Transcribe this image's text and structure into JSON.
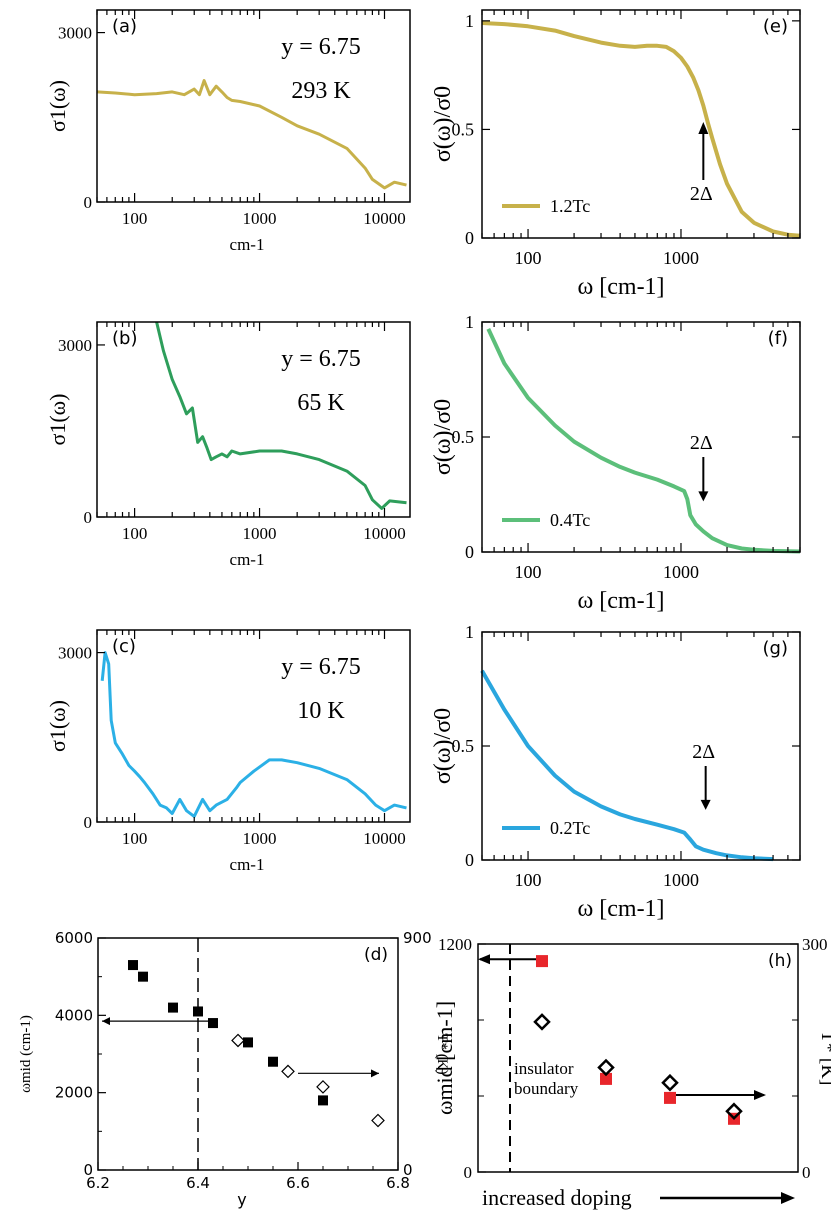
{
  "chart_data": [
    {
      "id": "a",
      "type": "line",
      "panel_label": "(a)",
      "annotations": [
        "y = 6.75",
        "293 K"
      ],
      "ylabel": "σ1(ω)",
      "xlabel": "cm-1",
      "xscale": "log",
      "xlim": [
        50,
        16000
      ],
      "ylim": [
        0,
        3400
      ],
      "xticks": [
        100,
        1000,
        10000
      ],
      "xtick_labels": [
        "100",
        "1000",
        "10000"
      ],
      "yticks": [
        0,
        3000
      ],
      "ytick_labels": [
        "0",
        "3000"
      ],
      "series": [
        {
          "color": "#c7b14a",
          "x": [
            50,
            70,
            100,
            150,
            200,
            250,
            300,
            330,
            360,
            400,
            450,
            500,
            550,
            600,
            700,
            1000,
            1500,
            2000,
            3000,
            5000,
            7000,
            8000,
            10000,
            12000,
            15000
          ],
          "y": [
            1950,
            1930,
            1900,
            1920,
            1950,
            1900,
            2000,
            1900,
            2150,
            1900,
            2050,
            1950,
            1850,
            1800,
            1780,
            1700,
            1500,
            1350,
            1200,
            950,
            600,
            400,
            250,
            350,
            300
          ]
        }
      ]
    },
    {
      "id": "b",
      "type": "line",
      "panel_label": "(b)",
      "annotations": [
        "y = 6.75",
        "65 K"
      ],
      "ylabel": "σ1(ω)",
      "xlabel": "cm-1",
      "xscale": "log",
      "xlim": [
        50,
        16000
      ],
      "ylim": [
        0,
        3400
      ],
      "xticks": [
        100,
        1000,
        10000
      ],
      "xtick_labels": [
        "100",
        "1000",
        "10000"
      ],
      "yticks": [
        0,
        3000
      ],
      "ytick_labels": [
        "0",
        "3000"
      ],
      "series": [
        {
          "color": "#2e9e5b",
          "x": [
            150,
            170,
            200,
            230,
            260,
            290,
            320,
            350,
            380,
            410,
            450,
            500,
            550,
            600,
            700,
            1000,
            1500,
            2000,
            3000,
            5000,
            7000,
            8000,
            9500,
            11000,
            15000
          ],
          "y": [
            3400,
            2900,
            2400,
            2100,
            1800,
            1900,
            1300,
            1400,
            1200,
            1000,
            1050,
            1100,
            1050,
            1150,
            1100,
            1150,
            1150,
            1100,
            1000,
            800,
            550,
            300,
            150,
            280,
            250
          ]
        }
      ]
    },
    {
      "id": "c",
      "type": "line",
      "panel_label": "(c)",
      "annotations": [
        "y = 6.75",
        "10 K"
      ],
      "ylabel": "σ1(ω)",
      "xlabel": "cm-1",
      "xscale": "log",
      "xlim": [
        50,
        16000
      ],
      "ylim": [
        0,
        3400
      ],
      "xticks": [
        100,
        1000,
        10000
      ],
      "xtick_labels": [
        "100",
        "1000",
        "10000"
      ],
      "yticks": [
        0,
        3000
      ],
      "ytick_labels": [
        "0",
        "3000"
      ],
      "series": [
        {
          "color": "#2bb0e6",
          "x": [
            55,
            58,
            62,
            65,
            70,
            80,
            90,
            100,
            110,
            120,
            140,
            160,
            180,
            200,
            230,
            260,
            300,
            350,
            400,
            450,
            550,
            650,
            700,
            900,
            1200,
            1500,
            2000,
            3000,
            5000,
            7000,
            8500,
            10000,
            12000,
            15000
          ],
          "y": [
            2500,
            3000,
            2800,
            1800,
            1400,
            1200,
            1000,
            900,
            800,
            700,
            500,
            300,
            250,
            150,
            400,
            200,
            100,
            400,
            200,
            300,
            400,
            600,
            700,
            900,
            1100,
            1100,
            1050,
            950,
            750,
            500,
            300,
            200,
            300,
            250
          ]
        }
      ]
    },
    {
      "id": "e",
      "type": "line",
      "panel_label": "(e)",
      "ylabel": "σ(ω)/σ0",
      "xlabel": "ω [cm-1]",
      "xscale": "log",
      "xlim": [
        50,
        6000
      ],
      "ylim": [
        0,
        1.05
      ],
      "xticks": [
        100,
        1000
      ],
      "xtick_labels": [
        "100",
        "1000"
      ],
      "yticks": [
        0,
        0.5,
        1
      ],
      "ytick_labels": [
        "0",
        "0.5",
        "1"
      ],
      "legend": "1.2Tc",
      "legend_position": "bottom-left",
      "arrow": {
        "text": "2Δ",
        "x": 1400,
        "direction": "up"
      },
      "series": [
        {
          "name": "1.2Tc",
          "color": "#c7b14a",
          "x": [
            50,
            70,
            100,
            150,
            200,
            300,
            400,
            500,
            600,
            700,
            800,
            900,
            1000,
            1100,
            1200,
            1300,
            1400,
            1500,
            1600,
            1800,
            2000,
            2500,
            3000,
            4000,
            5000,
            6000
          ],
          "y": [
            0.99,
            0.985,
            0.975,
            0.955,
            0.93,
            0.9,
            0.885,
            0.88,
            0.885,
            0.885,
            0.88,
            0.86,
            0.83,
            0.79,
            0.74,
            0.68,
            0.61,
            0.53,
            0.46,
            0.34,
            0.25,
            0.12,
            0.07,
            0.03,
            0.015,
            0.01
          ]
        }
      ]
    },
    {
      "id": "f",
      "type": "line",
      "panel_label": "(f)",
      "ylabel": "σ(ω)/σ0",
      "xlabel": "ω [cm-1]",
      "xscale": "log",
      "xlim": [
        50,
        6000
      ],
      "ylim": [
        0,
        1.0
      ],
      "xticks": [
        100,
        1000
      ],
      "xtick_labels": [
        "100",
        "1000"
      ],
      "yticks": [
        0,
        0.5,
        1
      ],
      "ytick_labels": [
        "0",
        "0.5",
        "1"
      ],
      "legend": "0.4Tc",
      "legend_position": "bottom-left",
      "arrow": {
        "text": "2Δ",
        "x": 1400,
        "direction": "down"
      },
      "series": [
        {
          "name": "0.4Tc",
          "color": "#5cbf7a",
          "x": [
            55,
            70,
            100,
            150,
            200,
            300,
            400,
            500,
            700,
            900,
            1050,
            1100,
            1150,
            1250,
            1400,
            1600,
            2000,
            2500,
            3000,
            4000,
            5000,
            6000
          ],
          "y": [
            0.97,
            0.82,
            0.67,
            0.55,
            0.48,
            0.41,
            0.37,
            0.345,
            0.315,
            0.285,
            0.265,
            0.23,
            0.16,
            0.12,
            0.09,
            0.06,
            0.03,
            0.015,
            0.01,
            0.005,
            0.003,
            0.002
          ]
        }
      ]
    },
    {
      "id": "g",
      "type": "line",
      "panel_label": "(g)",
      "ylabel": "σ(ω)/σ0",
      "xlabel": "ω [cm-1]",
      "xscale": "log",
      "xlim": [
        50,
        6000
      ],
      "ylim": [
        0,
        1.0
      ],
      "xticks": [
        100,
        1000
      ],
      "xtick_labels": [
        "100",
        "1000"
      ],
      "yticks": [
        0,
        0.5,
        1
      ],
      "ytick_labels": [
        "0",
        "0.5",
        "1"
      ],
      "legend": "0.2Tc",
      "legend_position": "bottom-left",
      "arrow": {
        "text": "2Δ",
        "x": 1450,
        "direction": "down"
      },
      "series": [
        {
          "name": "0.2Tc",
          "color": "#2aa6de",
          "x": [
            50,
            70,
            100,
            150,
            200,
            300,
            400,
            500,
            700,
            900,
            1050,
            1150,
            1250,
            1400,
            1700,
            2000,
            2500,
            3000,
            4000
          ],
          "y": [
            0.83,
            0.66,
            0.5,
            0.37,
            0.3,
            0.235,
            0.2,
            0.18,
            0.155,
            0.135,
            0.12,
            0.09,
            0.06,
            0.045,
            0.03,
            0.02,
            0.012,
            0.008,
            0.004
          ]
        }
      ]
    },
    {
      "id": "d",
      "type": "scatter",
      "panel_label": "(d)",
      "xlabel": "y",
      "ylabel": "ωmid (cm-1)",
      "ylabel_right": "T* (K)",
      "xlim": [
        6.2,
        6.8
      ],
      "ylim": [
        0,
        6000
      ],
      "ylim_right": [
        0,
        900
      ],
      "xticks": [
        6.2,
        6.4,
        6.6,
        6.8
      ],
      "xtick_labels": [
        "6.2",
        "6.4",
        "6.6",
        "6.8"
      ],
      "yticks": [
        0,
        2000,
        4000,
        6000
      ],
      "ytick_labels": [
        "0",
        "2000",
        "4000",
        "6000"
      ],
      "yticks_right": [
        0,
        900
      ],
      "ytick_labels_right": [
        "0",
        "900"
      ],
      "dashed_vline_x": 6.4,
      "arrows": [
        {
          "direction": "left",
          "x_from": 6.42,
          "x_to": 6.2,
          "y": 3850
        },
        {
          "direction": "right",
          "x_from": 6.6,
          "x_to": 6.77,
          "y": 2500
        }
      ],
      "series": [
        {
          "marker": "filled-square",
          "axis": "left",
          "x": [
            6.27,
            6.29,
            6.35,
            6.4,
            6.43,
            6.5,
            6.55,
            6.65
          ],
          "y": [
            5300,
            5000,
            4200,
            4100,
            3800,
            3300,
            2800,
            1800
          ]
        },
        {
          "marker": "open-diamond",
          "axis": "left",
          "x": [
            6.48,
            6.58,
            6.65,
            6.76
          ],
          "y": [
            3350,
            2550,
            2150,
            1280
          ]
        }
      ]
    },
    {
      "id": "h",
      "type": "scatter",
      "panel_label": "(h)",
      "xlabel": "increased doping",
      "ylabel": "ωmid [cm-1]",
      "ylabel_right": "T* [K]",
      "xlim": [
        0,
        5
      ],
      "ylim": [
        0,
        1200
      ],
      "ylim_right": [
        0,
        300
      ],
      "yticks": [
        0,
        1200
      ],
      "ytick_labels": [
        "0",
        "1200"
      ],
      "yticks_right": [
        0,
        300
      ],
      "ytick_labels_right": [
        "0",
        "300"
      ],
      "dashed_vline_x": 0.5,
      "boundary_label": [
        "insulator",
        "boundary"
      ],
      "arrows": [
        {
          "direction": "left",
          "x_from": 1.0,
          "x_to": 0,
          "y": 1120
        },
        {
          "direction": "right",
          "x_from": 3.0,
          "x_to": 4.5,
          "y": 405
        }
      ],
      "series": [
        {
          "marker": "filled-square",
          "color": "#e8262b",
          "axis": "left",
          "x": [
            1,
            2,
            3,
            4
          ],
          "y": [
            1110,
            490,
            390,
            280
          ]
        },
        {
          "marker": "open-diamond",
          "axis": "left",
          "x": [
            1,
            2,
            3,
            4
          ],
          "y": [
            790,
            550,
            470,
            320
          ]
        }
      ]
    }
  ]
}
